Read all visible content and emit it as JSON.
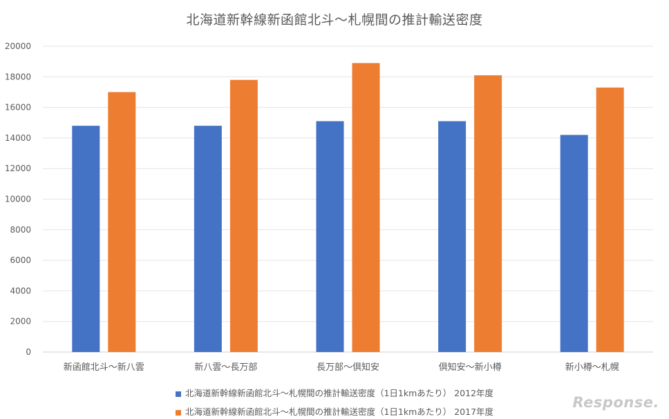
{
  "chart_data": {
    "type": "bar",
    "title": "北海道新幹線新函館北斗～札幌間の推計輸送密度",
    "xlabel": "",
    "ylabel": "",
    "categories": [
      "新函館北斗～新八雲",
      "新八雲～長万部",
      "長万部～倶知安",
      "倶知安～新小樽",
      "新小樽～札幌"
    ],
    "series": [
      {
        "name": "北海道新幹線新函館北斗～札幌間の推計輸送密度（1日1kmあたり） 2012年度",
        "values": [
          14800,
          14800,
          15100,
          15100,
          14200
        ],
        "color": "#4472C4"
      },
      {
        "name": "北海道新幹線新函館北斗～札幌間の推計輸送密度（1日1kmあたり） 2017年度",
        "values": [
          17000,
          17800,
          18900,
          18100,
          17300
        ],
        "color": "#ED7D31"
      }
    ],
    "ylim": [
      0,
      20000
    ],
    "yticks": [
      0,
      2000,
      4000,
      6000,
      8000,
      10000,
      12000,
      14000,
      16000,
      18000,
      20000
    ],
    "grid": true,
    "legend": "bottom"
  },
  "watermark": "Response."
}
